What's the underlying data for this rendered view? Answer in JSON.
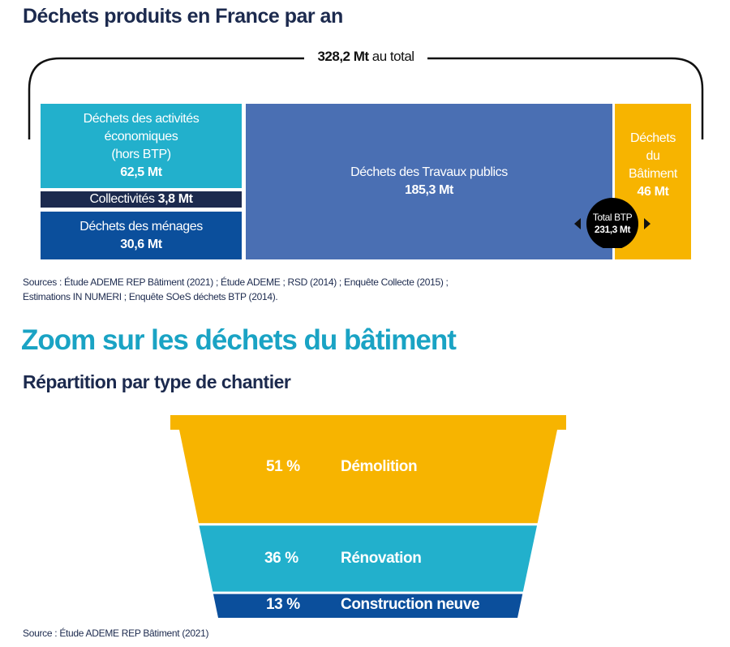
{
  "title1": "Déchets produits en France par an",
  "total_value": "328,2 Mt",
  "total_suffix": "au total",
  "sources1_line1": "Sources : Étude ADEME REP Bâtiment (2021) ; Étude ADEME ; RSD (2014) ; Enquête Collecte (2015) ;",
  "sources1_line2": "Estimations IN NUMERI ; Enquête SOeS déchets BTP (2014).",
  "title2": "Zoom sur les déchets du bâtiment",
  "subtitle2": "Répartition par type de chantier",
  "sources2": "Source : Étude ADEME REP Bâtiment (2021)",
  "colors": {
    "cyan": "#22b0cc",
    "navy": "#1c2a4e",
    "dark_blue": "#0b4f9c",
    "blue": "#4a6fb3",
    "yellow": "#f7b400",
    "teal_title": "#1aa3c4"
  },
  "chart_data": [
    {
      "type": "treemap",
      "title": "Déchets produits en France par an",
      "total": {
        "label": "328,2 Mt au total",
        "value": 328.2,
        "unit": "Mt"
      },
      "items": [
        {
          "name_lines": [
            "Déchets des  activités",
            "économiques",
            "(hors BTP)"
          ],
          "value_label": "62,5 Mt",
          "value": 62.5,
          "color": "#22b0cc"
        },
        {
          "name": "Collectivités",
          "value_label": "3,8 Mt",
          "value": 3.8,
          "color": "#1c2a4e"
        },
        {
          "name": "Déchets des  ménages",
          "value_label": "30,6 Mt",
          "value": 30.6,
          "color": "#0b4f9c"
        },
        {
          "name": "Déchets des  Travaux publics",
          "value_label": "185,3 Mt",
          "value": 185.3,
          "color": "#4a6fb3"
        },
        {
          "name_lines": [
            "Déchets",
            "du",
            "Bâtiment"
          ],
          "value_label": "46 Mt",
          "value": 46,
          "color": "#f7b400"
        }
      ],
      "annotation": {
        "label": "Total BTP",
        "value_label": "231,3 Mt",
        "value": 231.3
      }
    },
    {
      "type": "funnel",
      "title": "Répartition par type de chantier",
      "categories": [
        "Démolition",
        "Rénovation",
        "Construction neuve"
      ],
      "values": [
        51,
        36,
        13
      ],
      "value_labels": [
        "51 %",
        "36 %",
        "13 %"
      ],
      "unit": "%",
      "colors": [
        "#f7b400",
        "#22b0cc",
        "#0b4f9c"
      ]
    }
  ]
}
